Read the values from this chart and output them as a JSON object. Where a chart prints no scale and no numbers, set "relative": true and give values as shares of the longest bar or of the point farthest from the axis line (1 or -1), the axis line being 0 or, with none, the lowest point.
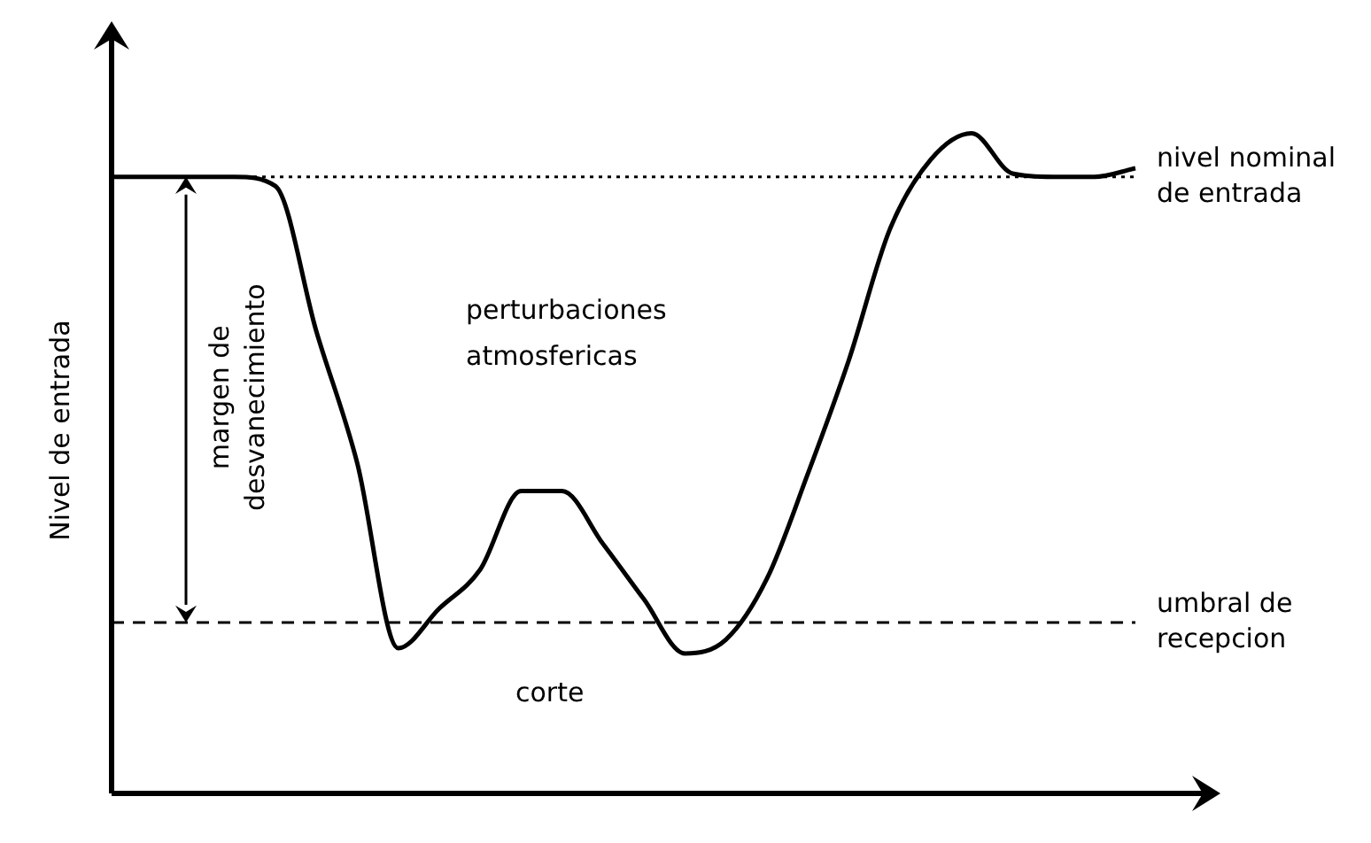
{
  "chart_data": {
    "type": "line",
    "relative": true,
    "ylabel": "Nivel de entrada",
    "categories": [
      null,
      null,
      null,
      null,
      null,
      null,
      null,
      null,
      null,
      null,
      null,
      null,
      null,
      null,
      null,
      null,
      null,
      null,
      null,
      null,
      null,
      null,
      null,
      null,
      null,
      null
    ],
    "series": [
      {
        "color": "#000000",
        "values": [
          0.934,
          0.934,
          0.934,
          0.934,
          0.92,
          0.7,
          0.5,
          0.22,
          0.28,
          0.339,
          0.458,
          0.458,
          0.378,
          0.294,
          0.212,
          0.233,
          0.325,
          0.484,
          0.656,
          0.854,
          0.96,
          1,
          0.939,
          0.934,
          0.934,
          0.947
        ]
      }
    ],
    "ref_lines": [
      {
        "axis": "y",
        "value": 0.934,
        "label": "nivel nominal de entrada",
        "line_style": "dotted",
        "color": "#000000"
      },
      {
        "axis": "y",
        "value": 0.259,
        "label": "umbral de recepcion",
        "line_style": "dashed",
        "color": "#000000"
      }
    ],
    "annotations": [
      "perturbaciones atmosfericas",
      "margen de desvanecimiento",
      "corte"
    ],
    "marker": "none",
    "line_style": "solid",
    "legend": false
  }
}
